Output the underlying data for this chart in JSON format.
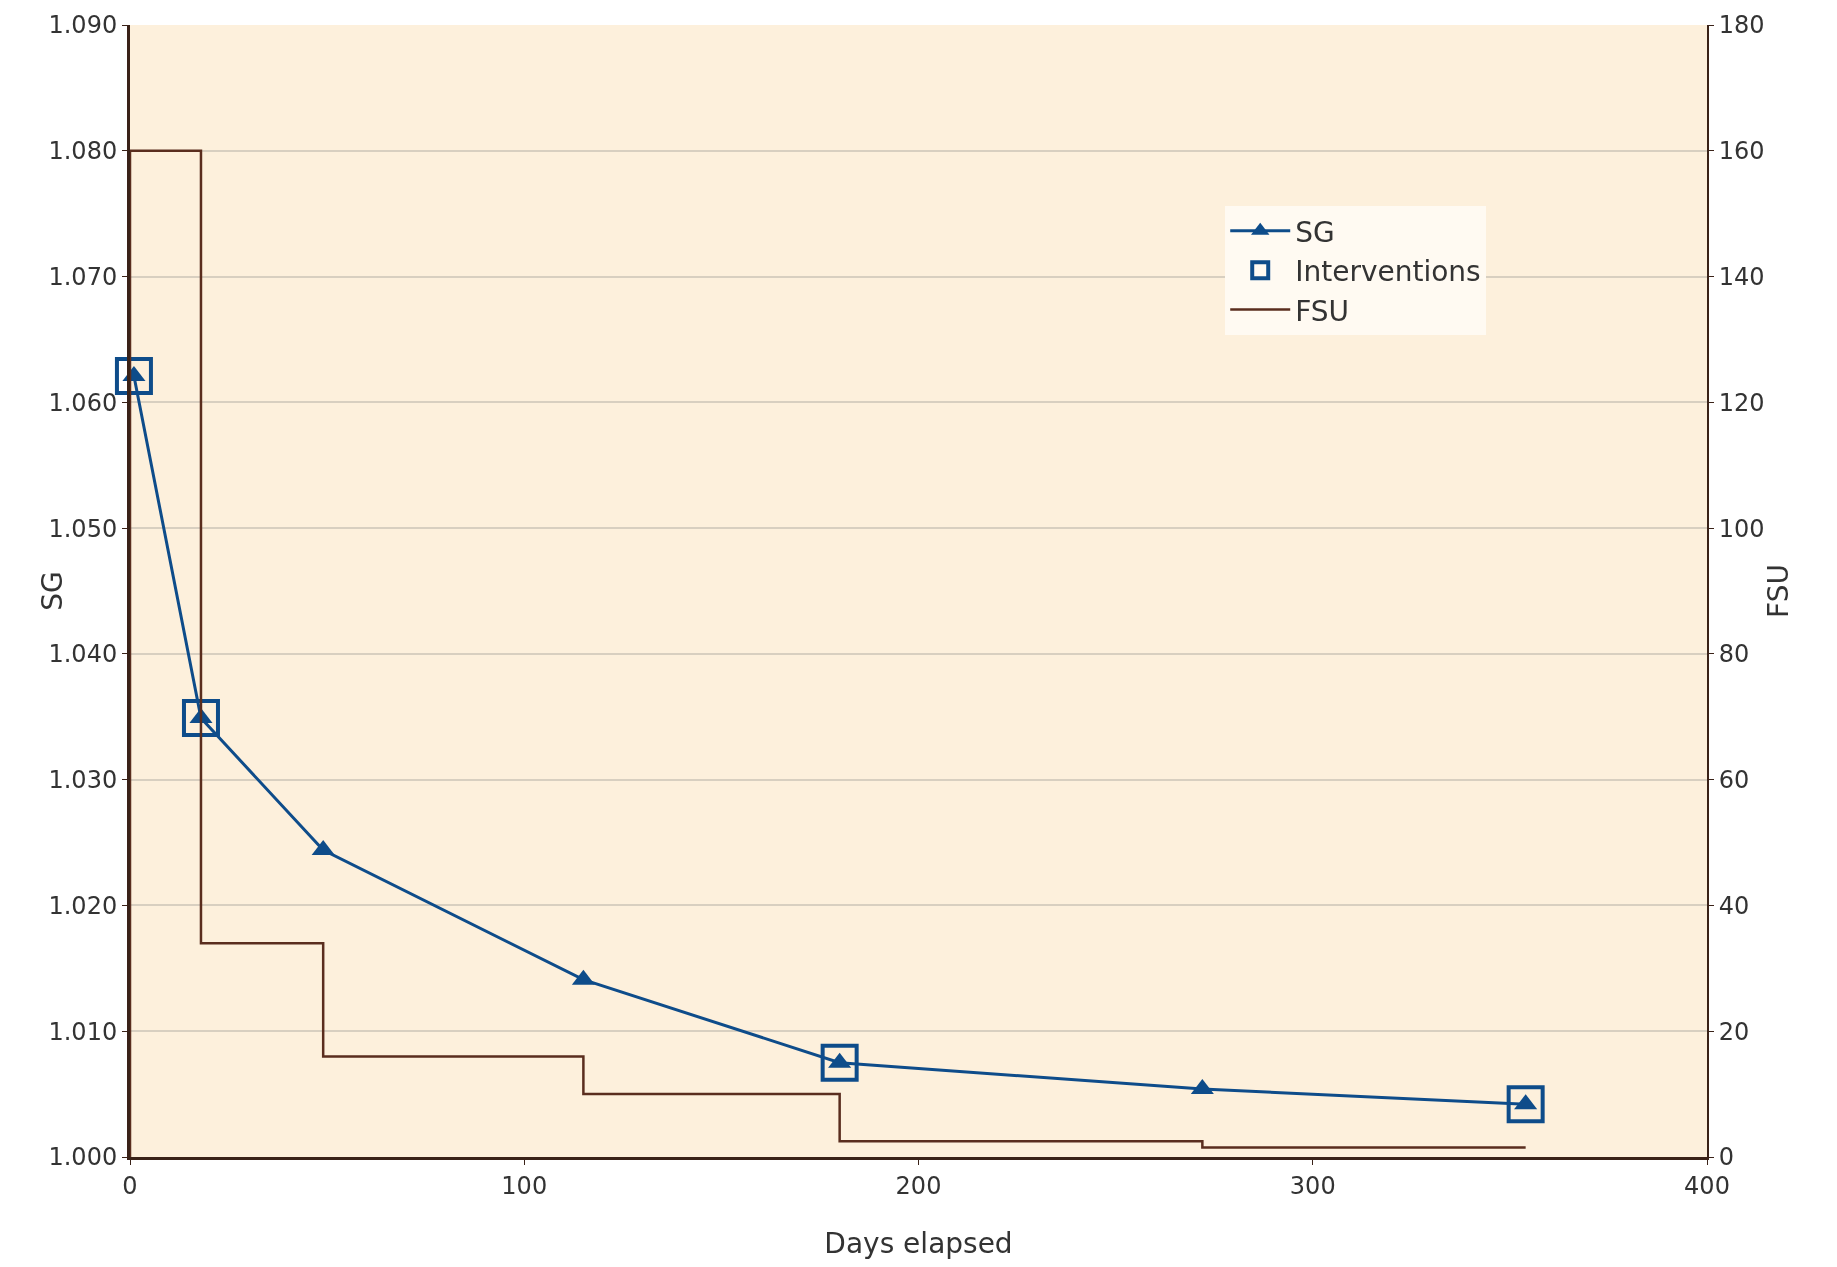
{
  "chart_data": {
    "type": "line",
    "xlabel": "Days elapsed",
    "ylabel": "SG",
    "y2label": "FSU",
    "xlim": [
      0,
      400
    ],
    "xticks": [
      0,
      100,
      200,
      300,
      400
    ],
    "ylim": [
      1.0,
      1.09
    ],
    "yticks": [
      {
        "value": 1.0,
        "label": "1.000"
      },
      {
        "value": 1.01,
        "label": "1.010"
      },
      {
        "value": 1.02,
        "label": "1.020"
      },
      {
        "value": 1.03,
        "label": "1.030"
      },
      {
        "value": 1.04,
        "label": "1.040"
      },
      {
        "value": 1.05,
        "label": "1.050"
      },
      {
        "value": 1.06,
        "label": "1.060"
      },
      {
        "value": 1.07,
        "label": "1.070"
      },
      {
        "value": 1.08,
        "label": "1.080"
      },
      {
        "value": 1.09,
        "label": "1.090"
      }
    ],
    "y2lim": [
      0,
      180
    ],
    "y2ticks": [
      0,
      20,
      40,
      60,
      80,
      100,
      120,
      140,
      160,
      180
    ],
    "grid": "y",
    "legend": "top right",
    "series": [
      {
        "name": "SG",
        "color": "#0e4c8a",
        "marker": "triangle",
        "x": [
          1,
          18,
          49,
          115,
          180,
          272,
          354
        ],
        "values": [
          1.0621,
          1.0349,
          1.0244,
          1.0141,
          1.0075,
          1.0054,
          1.0042
        ]
      },
      {
        "name": "Interventions",
        "type": "scatter",
        "color": "#0e4c8a",
        "marker": "square",
        "x": [
          1,
          18,
          180,
          354
        ],
        "values": [
          1.0621,
          1.0349,
          1.0075,
          1.0042
        ]
      },
      {
        "name": "FSU",
        "type": "step",
        "axis": "y2",
        "color": "#5a2d1e",
        "marker": "none",
        "x": [
          0,
          0,
          18,
          49,
          115,
          180,
          272,
          354
        ],
        "values": [
          0,
          160,
          34,
          16,
          10,
          2.5,
          1.5,
          1.5
        ]
      }
    ]
  }
}
